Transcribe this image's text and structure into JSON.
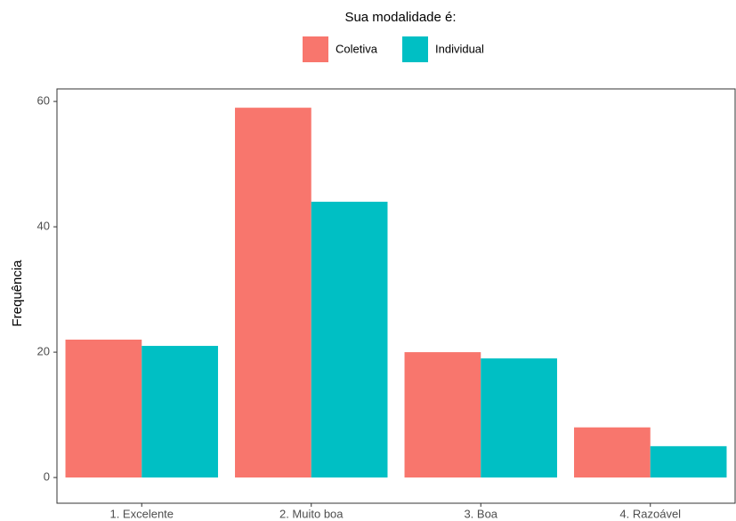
{
  "chart_data": {
    "type": "bar",
    "legend_title": "Sua modalidade é:",
    "y_label": "Frequência",
    "categories": [
      "1. Excelente",
      "2. Muito boa",
      "3. Boa",
      "4. Razoável"
    ],
    "series": [
      {
        "name": "Coletiva",
        "color": "#F8766D",
        "values": [
          22,
          59,
          20,
          8
        ]
      },
      {
        "name": "Individual",
        "color": "#00BFC4",
        "values": [
          21,
          44,
          19,
          5
        ]
      }
    ],
    "ylim": [
      -4.1,
      62
    ],
    "yticks": [
      0,
      20,
      40,
      60
    ],
    "legend": "top"
  }
}
